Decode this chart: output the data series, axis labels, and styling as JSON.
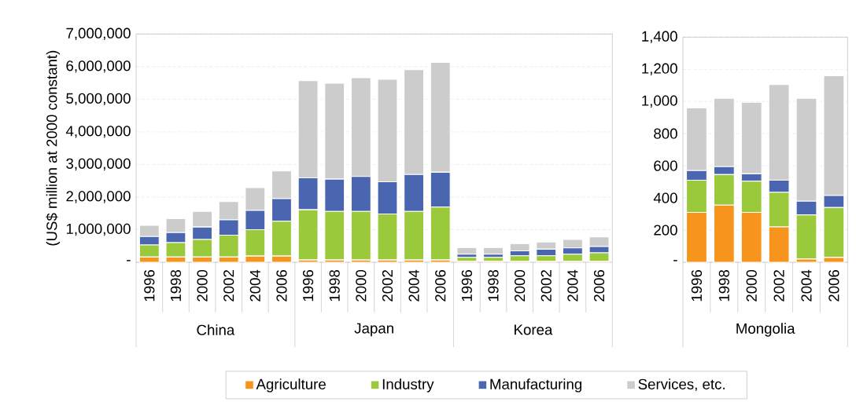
{
  "chart_data": [
    {
      "type": "bar",
      "stacked": true,
      "ylabel": "(US$ million at 2000 constant)",
      "categories": [
        "1996",
        "1998",
        "2000",
        "2002",
        "2004",
        "2006",
        "1996",
        "1998",
        "2000",
        "2002",
        "2004",
        "2006",
        "1996",
        "1998",
        "2000",
        "2002",
        "2004",
        "2006"
      ],
      "annotations": [
        "China",
        "Japan",
        "Korea"
      ],
      "series": [
        {
          "name": "Agriculture",
          "color": "#f7941d",
          "values": [
            160000,
            160000,
            160000,
            160000,
            190000,
            190000,
            70000,
            70000,
            70000,
            70000,
            70000,
            70000,
            30000,
            30000,
            30000,
            30000,
            30000,
            30000
          ]
        },
        {
          "name": "Industry",
          "color": "#9ac93c",
          "values": [
            370000,
            440000,
            540000,
            670000,
            810000,
            1070000,
            1540000,
            1490000,
            1490000,
            1410000,
            1490000,
            1620000,
            120000,
            120000,
            170000,
            170000,
            220000,
            260000
          ]
        },
        {
          "name": "Manufacturing",
          "color": "#4a66b0",
          "values": [
            260000,
            310000,
            380000,
            470000,
            590000,
            690000,
            980000,
            990000,
            1070000,
            990000,
            1130000,
            1070000,
            100000,
            100000,
            150000,
            200000,
            190000,
            190000
          ]
        },
        {
          "name": "Services, etc.",
          "color": "#cccccc",
          "values": [
            340000,
            430000,
            480000,
            560000,
            700000,
            850000,
            2980000,
            2940000,
            3030000,
            3140000,
            3220000,
            3370000,
            200000,
            200000,
            220000,
            220000,
            260000,
            300000
          ]
        }
      ],
      "ylim": [
        0,
        7000000
      ],
      "yticks": [
        {
          "value": 0,
          "label": "-"
        },
        {
          "value": 1000000,
          "label": "1,000,000"
        },
        {
          "value": 2000000,
          "label": "2,000,000"
        },
        {
          "value": 3000000,
          "label": "3,000,000"
        },
        {
          "value": 4000000,
          "label": "4,000,000"
        },
        {
          "value": 5000000,
          "label": "5,000,000"
        },
        {
          "value": 6000000,
          "label": "6,000,000"
        },
        {
          "value": 7000000,
          "label": "7,000,000"
        }
      ],
      "grid": "y",
      "legend": "bottom"
    },
    {
      "type": "bar",
      "stacked": true,
      "categories": [
        "1996",
        "1998",
        "2000",
        "2002",
        "2004",
        "2006"
      ],
      "annotations": [
        "Mongolia"
      ],
      "series": [
        {
          "color": "#f7941d",
          "values": [
            310,
            355,
            310,
            220,
            20,
            30
          ]
        },
        {
          "color": "#9ac93c",
          "values": [
            200,
            190,
            195,
            215,
            275,
            310
          ]
        },
        {
          "color": "#4a66b0",
          "values": [
            60,
            50,
            45,
            75,
            85,
            75
          ]
        },
        {
          "color": "#cccccc",
          "values": [
            390,
            425,
            445,
            595,
            640,
            745
          ]
        }
      ],
      "ylim": [
        0,
        1400
      ],
      "yticks": [
        {
          "value": 0,
          "label": "-"
        },
        {
          "value": 200,
          "label": "200"
        },
        {
          "value": 400,
          "label": "400"
        },
        {
          "value": 600,
          "label": "600"
        },
        {
          "value": 800,
          "label": "800"
        },
        {
          "value": 1000,
          "label": "1,000"
        },
        {
          "value": 1200,
          "label": "1,200"
        },
        {
          "value": 1400,
          "label": "1,400"
        }
      ],
      "grid": "y"
    }
  ]
}
